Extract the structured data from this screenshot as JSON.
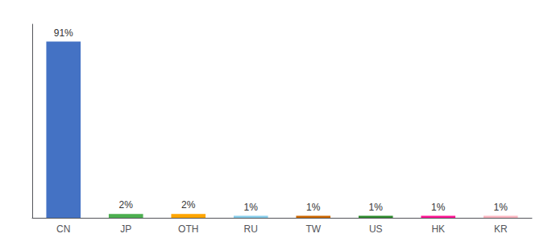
{
  "chart_data": {
    "type": "bar",
    "categories": [
      "CN",
      "JP",
      "OTH",
      "RU",
      "TW",
      "US",
      "HK",
      "KR"
    ],
    "values": [
      91,
      2,
      2,
      1,
      1,
      1,
      1,
      1
    ],
    "value_labels": [
      "91%",
      "2%",
      "2%",
      "1%",
      "1%",
      "1%",
      "1%",
      "1%"
    ],
    "colors": [
      "#4472c4",
      "#4caf50",
      "#ffa500",
      "#87ceeb",
      "#cc6600",
      "#2e8b2e",
      "#ff1493",
      "#ffb6c1"
    ],
    "ylim": [
      0,
      100
    ],
    "grid": false,
    "data_labels": true,
    "tick_labels": "x"
  }
}
